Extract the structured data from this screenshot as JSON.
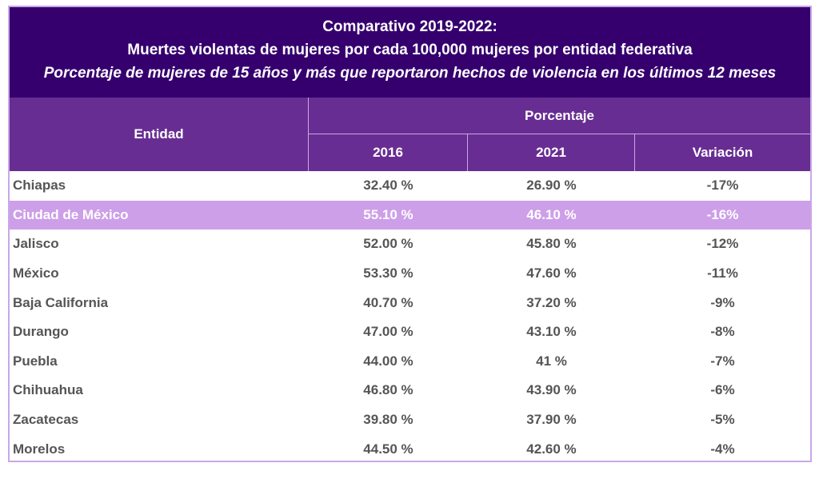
{
  "header": {
    "title": "Comparativo 2019-2022:",
    "subtitle": "Muertes violentas de mujeres por cada 100,000 mujeres por entidad federativa",
    "subtitle_italic": "Porcentaje de mujeres de 15 años y más que reportaron hechos de violencia en los últimos 12 meses"
  },
  "colors": {
    "title_bg": "#35006e",
    "header_bg": "#682d92",
    "highlight_row": "#cd9fe8",
    "border": "#c9a7e8"
  },
  "chart_data": {
    "type": "table",
    "columns": {
      "entidad": "Entidad",
      "group": "Porcentaje",
      "c2016": "2016",
      "c2021": "2021",
      "variacion": "Variación"
    },
    "highlighted_row": "Ciudad de México",
    "rows": [
      {
        "entidad": "Chiapas",
        "v2016": "32.40 %",
        "v2021": "26.90 %",
        "variacion": "-17%"
      },
      {
        "entidad": "Ciudad de México",
        "v2016": "55.10 %",
        "v2021": "46.10 %",
        "variacion": "-16%"
      },
      {
        "entidad": "Jalisco",
        "v2016": "52.00 %",
        "v2021": "45.80 %",
        "variacion": "-12%"
      },
      {
        "entidad": "México",
        "v2016": "53.30 %",
        "v2021": "47.60 %",
        "variacion": "-11%"
      },
      {
        "entidad": "Baja California",
        "v2016": "40.70 %",
        "v2021": "37.20 %",
        "variacion": "-9%"
      },
      {
        "entidad": "Durango",
        "v2016": "47.00 %",
        "v2021": "43.10 %",
        "variacion": "-8%"
      },
      {
        "entidad": "Puebla",
        "v2016": "44.00 %",
        "v2021": "41 %",
        "variacion": "-7%"
      },
      {
        "entidad": "Chihuahua",
        "v2016": "46.80 %",
        "v2021": "43.90 %",
        "variacion": "-6%"
      },
      {
        "entidad": "Zacatecas",
        "v2016": "39.80 %",
        "v2021": "37.90 %",
        "variacion": "-5%"
      },
      {
        "entidad": "Morelos",
        "v2016": "44.50 %",
        "v2021": "42.60 %",
        "variacion": "-4%"
      }
    ]
  }
}
